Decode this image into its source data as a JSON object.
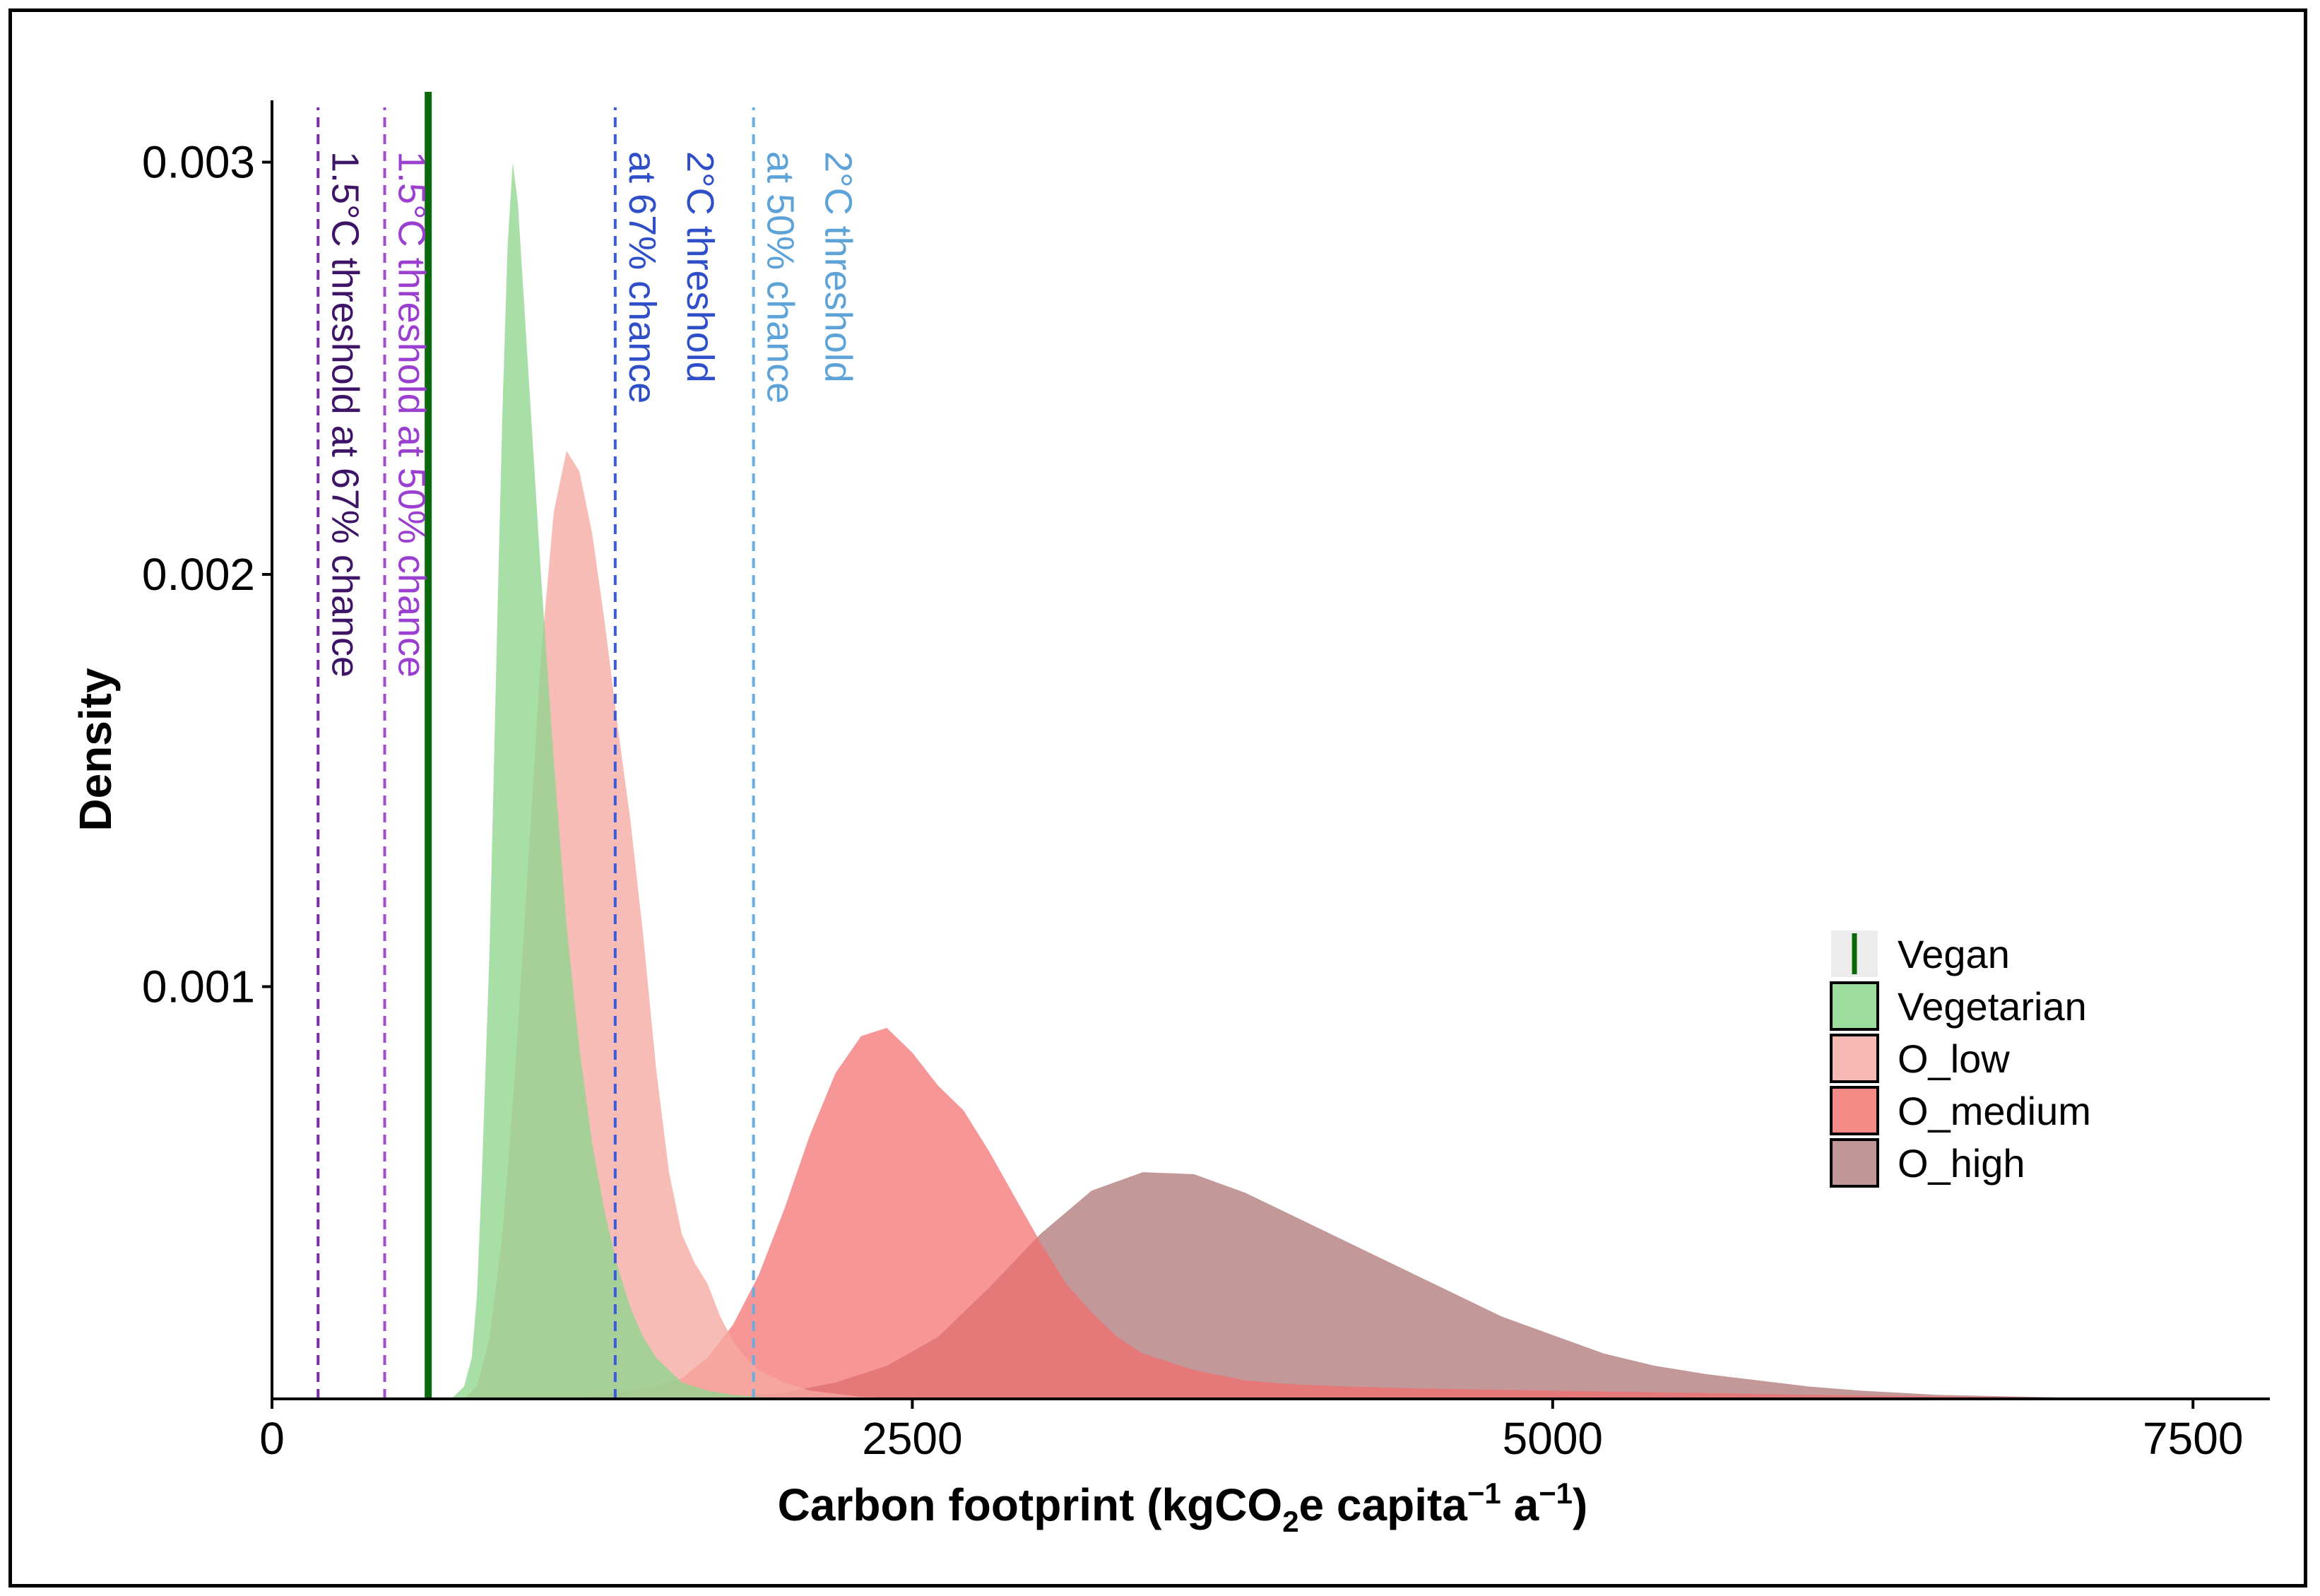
{
  "chart_data": {
    "type": "area",
    "title": "",
    "xlabel_main": "Carbon footprint (kgCO",
    "xlabel_sub": "2",
    "xlabel_rest": "e capita",
    "xlabel_sup1": "−1",
    "xlabel_a": " a",
    "xlabel_sup2": "−1",
    "xlabel_close": ")",
    "ylabel": "Density",
    "xlim": [
      0,
      7800
    ],
    "ylim": [
      0,
      0.00315
    ],
    "x_ticks": [
      {
        "value": 0,
        "label": "0"
      },
      {
        "value": 2500,
        "label": "2500"
      },
      {
        "value": 5000,
        "label": "5000"
      },
      {
        "value": 7500,
        "label": "7500"
      }
    ],
    "y_ticks": [
      {
        "value": 0.001,
        "label": "0.001"
      },
      {
        "value": 0.002,
        "label": "0.002"
      },
      {
        "value": 0.003,
        "label": "0.003"
      }
    ],
    "series": [
      {
        "name": "O_high",
        "color": "#b98a8a",
        "opacity": 0.88,
        "points": [
          [
            1500,
            0
          ],
          [
            1800,
            5e-06
          ],
          [
            2000,
            1.5e-05
          ],
          [
            2200,
            4e-05
          ],
          [
            2400,
            8e-05
          ],
          [
            2600,
            0.00015
          ],
          [
            2800,
            0.00027
          ],
          [
            3000,
            0.0004
          ],
          [
            3200,
            0.000505
          ],
          [
            3400,
            0.00055
          ],
          [
            3600,
            0.000545
          ],
          [
            3800,
            0.0005
          ],
          [
            4000,
            0.00044
          ],
          [
            4200,
            0.00038
          ],
          [
            4400,
            0.00032
          ],
          [
            4600,
            0.00026
          ],
          [
            4800,
            0.0002
          ],
          [
            5000,
            0.000155
          ],
          [
            5200,
            0.00011
          ],
          [
            5400,
            8e-05
          ],
          [
            5600,
            6e-05
          ],
          [
            5800,
            4.5e-05
          ],
          [
            6000,
            3e-05
          ],
          [
            6200,
            2e-05
          ],
          [
            6500,
            1e-05
          ],
          [
            7000,
            3e-06
          ],
          [
            7500,
            0
          ]
        ]
      },
      {
        "name": "O_medium",
        "color": "#f36d6d",
        "opacity": 0.72,
        "points": [
          [
            1100,
            0
          ],
          [
            1300,
            1e-05
          ],
          [
            1500,
            3e-05
          ],
          [
            1600,
            5e-05
          ],
          [
            1700,
            0.0001
          ],
          [
            1800,
            0.00018
          ],
          [
            1900,
            0.0003
          ],
          [
            2000,
            0.00046
          ],
          [
            2100,
            0.00064
          ],
          [
            2200,
            0.00079
          ],
          [
            2300,
            0.00088
          ],
          [
            2400,
            0.0009
          ],
          [
            2500,
            0.00084
          ],
          [
            2600,
            0.00076
          ],
          [
            2700,
            0.0007
          ],
          [
            2800,
            0.0006
          ],
          [
            2900,
            0.00049
          ],
          [
            3000,
            0.00038
          ],
          [
            3100,
            0.00028
          ],
          [
            3200,
            0.00021
          ],
          [
            3300,
            0.00015
          ],
          [
            3400,
            0.00011
          ],
          [
            3600,
            7e-05
          ],
          [
            3800,
            4.5e-05
          ],
          [
            4000,
            3.5e-05
          ],
          [
            4200,
            3e-05
          ],
          [
            4500,
            2.5e-05
          ],
          [
            5000,
            2e-05
          ],
          [
            5500,
            1.5e-05
          ],
          [
            6000,
            1e-05
          ],
          [
            6500,
            6e-06
          ],
          [
            7000,
            3e-06
          ],
          [
            7300,
            0
          ]
        ]
      },
      {
        "name": "O_low",
        "color": "#f6a9a2",
        "opacity": 0.78,
        "points": [
          [
            750,
            0
          ],
          [
            800,
            3e-05
          ],
          [
            850,
            0.00015
          ],
          [
            900,
            0.0004
          ],
          [
            950,
            0.0008
          ],
          [
            1000,
            0.0013
          ],
          [
            1050,
            0.0018
          ],
          [
            1100,
            0.00215
          ],
          [
            1150,
            0.0023
          ],
          [
            1200,
            0.00225
          ],
          [
            1250,
            0.0021
          ],
          [
            1300,
            0.00188
          ],
          [
            1350,
            0.00163
          ],
          [
            1400,
            0.0014
          ],
          [
            1450,
            0.00112
          ],
          [
            1500,
            0.0008
          ],
          [
            1550,
            0.00055
          ],
          [
            1600,
            0.0004
          ],
          [
            1650,
            0.00033
          ],
          [
            1700,
            0.00028
          ],
          [
            1750,
            0.0002
          ],
          [
            1800,
            0.00014
          ],
          [
            1850,
            0.0001
          ],
          [
            1900,
            7e-05
          ],
          [
            2000,
            4e-05
          ],
          [
            2100,
            2e-05
          ],
          [
            2300,
            5e-06
          ],
          [
            2500,
            0
          ]
        ]
      },
      {
        "name": "Vegetarian",
        "color": "#8ed68e",
        "opacity": 0.78,
        "points": [
          [
            700,
            0
          ],
          [
            750,
            3e-05
          ],
          [
            780,
            0.0001
          ],
          [
            800,
            0.00025
          ],
          [
            820,
            0.00055
          ],
          [
            850,
            0.0011
          ],
          [
            880,
            0.0019
          ],
          [
            900,
            0.0024
          ],
          [
            920,
            0.0028
          ],
          [
            940,
            0.003
          ],
          [
            960,
            0.0029
          ],
          [
            1000,
            0.0025
          ],
          [
            1050,
            0.002
          ],
          [
            1100,
            0.00155
          ],
          [
            1150,
            0.00115
          ],
          [
            1200,
            0.00085
          ],
          [
            1250,
            0.00062
          ],
          [
            1300,
            0.00045
          ],
          [
            1350,
            0.00032
          ],
          [
            1400,
            0.00022
          ],
          [
            1450,
            0.00015
          ],
          [
            1500,
            0.0001
          ],
          [
            1550,
            7e-05
          ],
          [
            1600,
            4e-05
          ],
          [
            1700,
            2e-05
          ],
          [
            1800,
            1e-05
          ],
          [
            2000,
            0
          ]
        ]
      }
    ],
    "vertical_lines": [
      {
        "name": "vegan-line",
        "x": 610,
        "color": "#0a6a0a",
        "dashed": false,
        "width": 10,
        "label_lines": []
      },
      {
        "name": "threshold-1-5c-67",
        "x": 180,
        "color": "#7a2fa8",
        "dashed": true,
        "width": 4,
        "label_lines": [
          "1.5°C threshold at 67% chance"
        ],
        "label_color": "#3d1466"
      },
      {
        "name": "threshold-1-5c-50",
        "x": 440,
        "color": "#a24ad0",
        "dashed": true,
        "width": 4,
        "label_lines": [
          "1.5°C threshold at 50% chance"
        ],
        "label_color": "#9b3fd0"
      },
      {
        "name": "threshold-2c-67",
        "x": 1340,
        "color": "#3a5be0",
        "dashed": true,
        "width": 4,
        "label_lines": [
          "2°C threshold",
          "at 67% chance"
        ],
        "label_color": "#2f4fc8"
      },
      {
        "name": "threshold-2c-50",
        "x": 1880,
        "color": "#6aaee0",
        "dashed": true,
        "width": 4,
        "label_lines": [
          "2°C threshold",
          "at 50% chance"
        ],
        "label_color": "#5da3d8"
      }
    ],
    "legend": {
      "position": "right-center",
      "items": [
        {
          "label": "Vegan",
          "type": "line",
          "color": "#0a6a0a"
        },
        {
          "label": "Vegetarian",
          "type": "box",
          "color": "#9ddd9d"
        },
        {
          "label": "O_low",
          "type": "box",
          "color": "#f7b9b3"
        },
        {
          "label": "O_medium",
          "type": "box",
          "color": "#f48b87"
        },
        {
          "label": "O_high",
          "type": "box",
          "color": "#c19696"
        }
      ]
    }
  }
}
